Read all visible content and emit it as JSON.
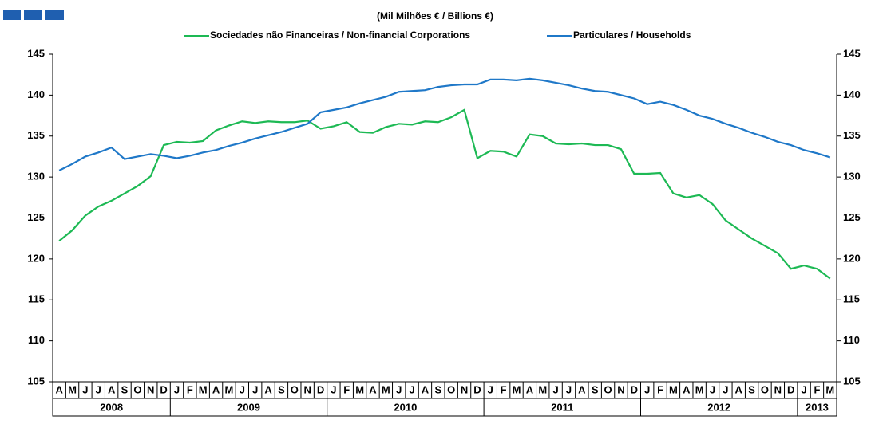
{
  "chart_data": {
    "type": "line",
    "subtitle": "(Mil Milhões € / Billions €)",
    "categories": [
      "A",
      "M",
      "J",
      "J",
      "A",
      "S",
      "O",
      "N",
      "D",
      "J",
      "F",
      "M",
      "A",
      "M",
      "J",
      "J",
      "A",
      "S",
      "O",
      "N",
      "D",
      "J",
      "F",
      "M",
      "A",
      "M",
      "J",
      "J",
      "A",
      "S",
      "O",
      "N",
      "D",
      "J",
      "F",
      "M",
      "A",
      "M",
      "J",
      "J",
      "A",
      "S",
      "O",
      "N",
      "D",
      "J",
      "F",
      "M",
      "A",
      "M",
      "J",
      "J",
      "A",
      "S",
      "O",
      "N",
      "D",
      "J",
      "F",
      "M"
    ],
    "years": [
      "2008",
      "2009",
      "2010",
      "2011",
      "2012",
      "2013"
    ],
    "series": [
      {
        "name": "Sociedades não Financeiras / Non-financial Corporations",
        "color": "#1db954",
        "values": [
          122.2,
          123.5,
          125.3,
          126.4,
          127.1,
          128.0,
          128.9,
          130.1,
          133.9,
          134.3,
          134.2,
          134.4,
          135.7,
          136.3,
          136.8,
          136.6,
          136.8,
          136.7,
          136.7,
          136.9,
          135.9,
          136.2,
          136.7,
          135.5,
          135.4,
          136.1,
          136.5,
          136.4,
          136.8,
          136.7,
          137.3,
          138.2,
          132.3,
          133.2,
          133.1,
          132.5,
          135.2,
          135.0,
          134.1,
          134.0,
          134.1,
          133.9,
          133.9,
          133.4,
          130.4,
          130.4,
          130.5,
          128.0,
          127.5,
          127.8,
          126.7,
          124.7,
          123.6,
          122.5,
          121.6,
          120.7,
          118.8,
          119.2,
          118.8,
          117.6
        ]
      },
      {
        "name": "Particulares / Households",
        "color": "#1f78c8",
        "values": [
          130.8,
          131.6,
          132.5,
          133.0,
          133.6,
          132.2,
          132.5,
          132.8,
          132.6,
          132.3,
          132.6,
          133.0,
          133.3,
          133.8,
          134.2,
          134.7,
          135.1,
          135.5,
          136.0,
          136.5,
          137.9,
          138.2,
          138.5,
          139.0,
          139.4,
          139.8,
          140.4,
          140.5,
          140.6,
          141.0,
          141.2,
          141.3,
          141.3,
          141.9,
          141.9,
          141.8,
          142.0,
          141.8,
          141.5,
          141.2,
          140.8,
          140.5,
          140.4,
          140.0,
          139.6,
          138.9,
          139.2,
          138.8,
          138.2,
          137.5,
          137.1,
          136.5,
          136.0,
          135.4,
          134.9,
          134.3,
          133.9,
          133.3,
          132.9,
          132.4
        ]
      }
    ],
    "ylim": [
      105,
      145
    ],
    "yticks": [
      105,
      110,
      115,
      120,
      125,
      130,
      135,
      140,
      145
    ],
    "right_axis": true
  }
}
